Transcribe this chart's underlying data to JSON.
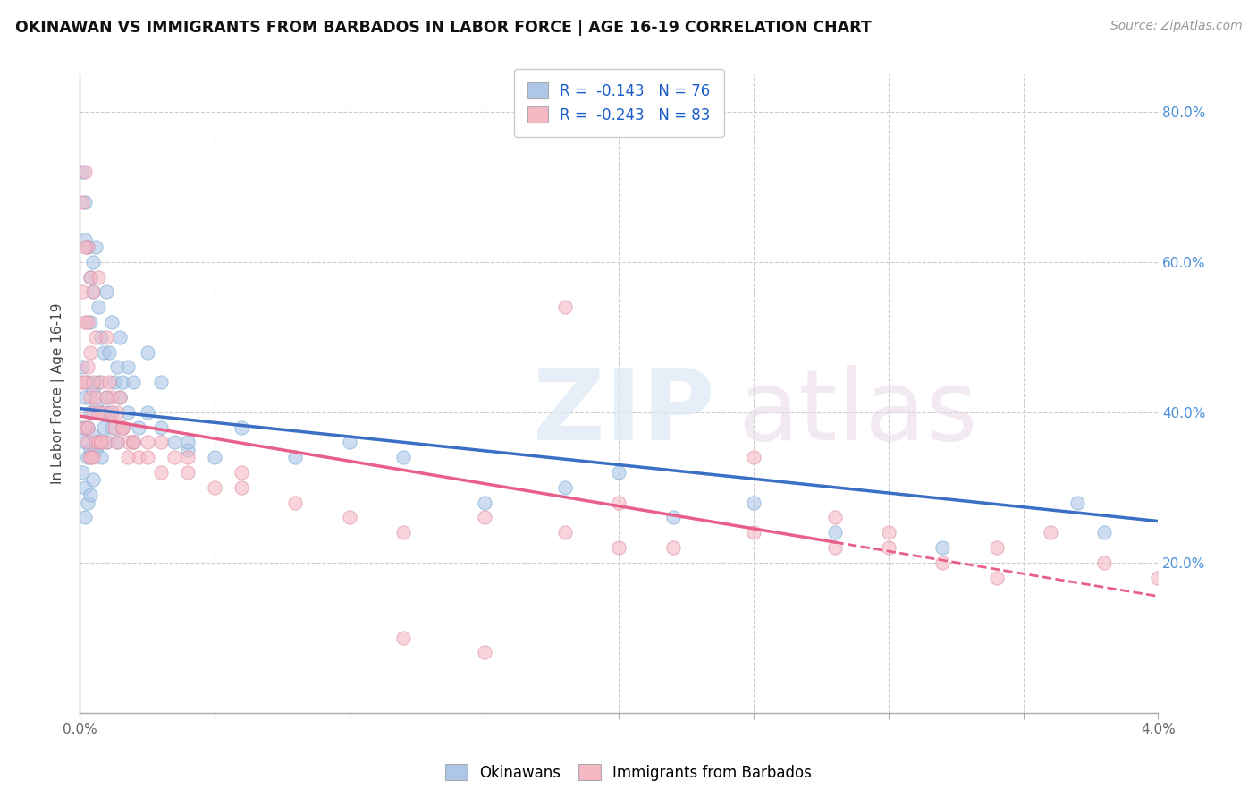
{
  "title": "OKINAWAN VS IMMIGRANTS FROM BARBADOS IN LABOR FORCE | AGE 16-19 CORRELATION CHART",
  "source": "Source: ZipAtlas.com",
  "xlabel": "",
  "ylabel": "In Labor Force | Age 16-19",
  "xlim": [
    0.0,
    0.04
  ],
  "ylim": [
    0.0,
    0.85
  ],
  "xticks": [
    0.0,
    0.005,
    0.01,
    0.015,
    0.02,
    0.025,
    0.03,
    0.035,
    0.04
  ],
  "xtick_labels": [
    "0.0%",
    "",
    "",
    "",
    "",
    "",
    "",
    "",
    "4.0%"
  ],
  "ytick_positions": [
    0.0,
    0.2,
    0.4,
    0.6,
    0.8
  ],
  "ytick_labels": [
    "",
    "20.0%",
    "40.0%",
    "60.0%",
    "80.0%"
  ],
  "okinawan_color": "#aec6e8",
  "barbados_color": "#f5b8c4",
  "okinawan_line_color": "#3a6fc4",
  "barbados_line_color": "#e8608a",
  "okinawan_x": [
    0.0001,
    0.0001,
    0.0001,
    0.0002,
    0.0002,
    0.0002,
    0.0002,
    0.0003,
    0.0003,
    0.0003,
    0.0003,
    0.0004,
    0.0004,
    0.0004,
    0.0005,
    0.0005,
    0.0005,
    0.0006,
    0.0006,
    0.0007,
    0.0007,
    0.0008,
    0.0008,
    0.0009,
    0.001,
    0.001,
    0.0011,
    0.0012,
    0.0013,
    0.0014,
    0.0015,
    0.0016,
    0.0018,
    0.002,
    0.0022,
    0.0025,
    0.003,
    0.0035,
    0.004,
    0.005,
    0.0001,
    0.0002,
    0.0002,
    0.0003,
    0.0004,
    0.0004,
    0.0005,
    0.0005,
    0.0006,
    0.0007,
    0.0008,
    0.0009,
    0.001,
    0.0011,
    0.0012,
    0.0014,
    0.0015,
    0.0016,
    0.0018,
    0.002,
    0.0025,
    0.003,
    0.004,
    0.006,
    0.008,
    0.01,
    0.012,
    0.015,
    0.018,
    0.02,
    0.022,
    0.025,
    0.028,
    0.032,
    0.037,
    0.038
  ],
  "okinawan_y": [
    0.46,
    0.38,
    0.32,
    0.42,
    0.36,
    0.3,
    0.26,
    0.44,
    0.38,
    0.34,
    0.28,
    0.4,
    0.35,
    0.29,
    0.43,
    0.37,
    0.31,
    0.41,
    0.35,
    0.44,
    0.36,
    0.4,
    0.34,
    0.38,
    0.42,
    0.36,
    0.4,
    0.38,
    0.44,
    0.36,
    0.42,
    0.38,
    0.4,
    0.36,
    0.38,
    0.4,
    0.38,
    0.36,
    0.35,
    0.34,
    0.72,
    0.68,
    0.63,
    0.62,
    0.58,
    0.52,
    0.6,
    0.56,
    0.62,
    0.54,
    0.5,
    0.48,
    0.56,
    0.48,
    0.52,
    0.46,
    0.5,
    0.44,
    0.46,
    0.44,
    0.48,
    0.44,
    0.36,
    0.38,
    0.34,
    0.36,
    0.34,
    0.28,
    0.3,
    0.32,
    0.26,
    0.28,
    0.24,
    0.22,
    0.28,
    0.24
  ],
  "barbados_x": [
    0.0001,
    0.0001,
    0.0002,
    0.0002,
    0.0002,
    0.0003,
    0.0003,
    0.0003,
    0.0004,
    0.0004,
    0.0004,
    0.0005,
    0.0005,
    0.0005,
    0.0006,
    0.0006,
    0.0007,
    0.0007,
    0.0008,
    0.0008,
    0.0009,
    0.001,
    0.001,
    0.0011,
    0.0012,
    0.0013,
    0.0014,
    0.0015,
    0.0016,
    0.0018,
    0.002,
    0.0022,
    0.0025,
    0.003,
    0.0035,
    0.004,
    0.005,
    0.006,
    0.0001,
    0.0002,
    0.0002,
    0.0003,
    0.0003,
    0.0004,
    0.0004,
    0.0005,
    0.0006,
    0.0007,
    0.0008,
    0.001,
    0.0012,
    0.0014,
    0.0016,
    0.0018,
    0.002,
    0.0025,
    0.003,
    0.004,
    0.006,
    0.008,
    0.01,
    0.012,
    0.015,
    0.018,
    0.02,
    0.022,
    0.025,
    0.028,
    0.03,
    0.032,
    0.034,
    0.034,
    0.036,
    0.038,
    0.04,
    0.025,
    0.028,
    0.03,
    0.018,
    0.02,
    0.015,
    0.012
  ],
  "barbados_y": [
    0.68,
    0.44,
    0.72,
    0.52,
    0.38,
    0.62,
    0.46,
    0.36,
    0.58,
    0.42,
    0.34,
    0.56,
    0.4,
    0.34,
    0.5,
    0.36,
    0.58,
    0.36,
    0.44,
    0.36,
    0.4,
    0.5,
    0.36,
    0.44,
    0.42,
    0.38,
    0.4,
    0.42,
    0.38,
    0.36,
    0.36,
    0.34,
    0.36,
    0.36,
    0.34,
    0.34,
    0.3,
    0.32,
    0.56,
    0.62,
    0.44,
    0.52,
    0.38,
    0.48,
    0.34,
    0.44,
    0.42,
    0.4,
    0.36,
    0.42,
    0.4,
    0.36,
    0.38,
    0.34,
    0.36,
    0.34,
    0.32,
    0.32,
    0.3,
    0.28,
    0.26,
    0.24,
    0.26,
    0.24,
    0.22,
    0.22,
    0.24,
    0.22,
    0.22,
    0.2,
    0.18,
    0.22,
    0.24,
    0.2,
    0.18,
    0.34,
    0.26,
    0.24,
    0.54,
    0.28,
    0.08,
    0.1
  ],
  "ok_line_x0": 0.0,
  "ok_line_x1": 0.04,
  "ok_line_y0": 0.405,
  "ok_line_y1": 0.255,
  "bar_line_x0": 0.0,
  "bar_line_x1": 0.04,
  "bar_line_y0": 0.395,
  "bar_line_y1": 0.155,
  "bar_line_solid_end": 0.028
}
